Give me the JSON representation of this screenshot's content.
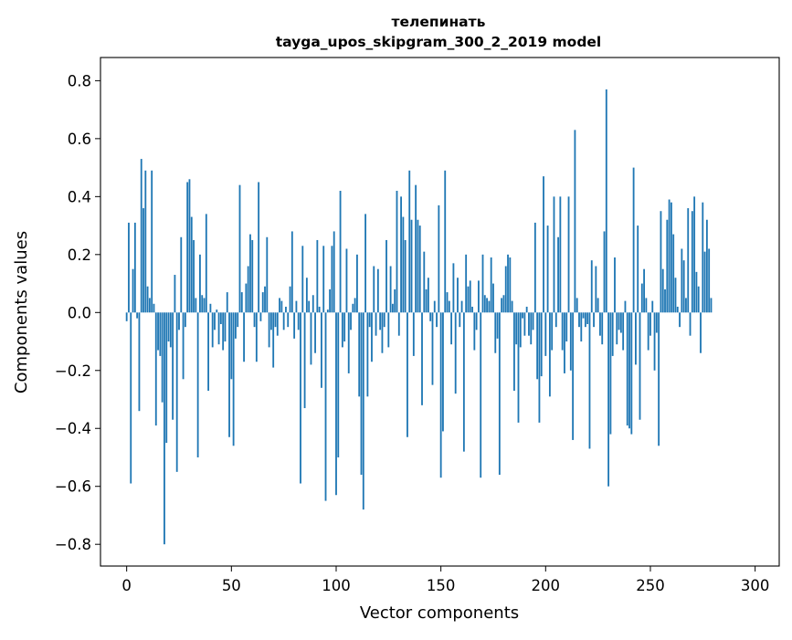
{
  "chart_data": {
    "type": "bar",
    "title": "телепинать",
    "subtitle": "tayga_upos_skipgram_300_2_2019 model",
    "xlabel": "Vector components",
    "ylabel": "Components values",
    "xlim": [
      -12.5,
      311.5
    ],
    "ylim": [
      -0.875,
      0.88
    ],
    "xticks": [
      0,
      50,
      100,
      150,
      200,
      250,
      300
    ],
    "xtick_labels": [
      "0",
      "50",
      "100",
      "150",
      "200",
      "250",
      "300"
    ],
    "yticks": [
      -0.8,
      -0.6,
      -0.4,
      -0.2,
      0.0,
      0.2,
      0.4,
      0.6,
      0.8
    ],
    "ytick_labels": [
      "−0.8",
      "−0.6",
      "−0.4",
      "−0.2",
      "0.0",
      "0.2",
      "0.4",
      "0.6",
      "0.8"
    ],
    "bar_color": "#1f77b4",
    "grid": false,
    "legend": "none",
    "values": [
      -0.03,
      0.31,
      -0.59,
      0.15,
      0.31,
      -0.02,
      -0.34,
      0.53,
      0.36,
      0.49,
      0.09,
      0.05,
      0.49,
      0.03,
      -0.39,
      -0.13,
      -0.15,
      -0.31,
      -0.8,
      -0.45,
      -0.1,
      -0.12,
      -0.37,
      0.13,
      -0.55,
      -0.06,
      0.26,
      -0.23,
      -0.05,
      0.45,
      0.46,
      0.33,
      0.25,
      0.05,
      -0.5,
      0.2,
      0.06,
      0.05,
      0.34,
      -0.27,
      0.03,
      -0.12,
      -0.06,
      0.01,
      -0.11,
      -0.04,
      -0.13,
      -0.1,
      0.07,
      -0.43,
      -0.23,
      -0.46,
      -0.09,
      -0.05,
      0.44,
      0.07,
      -0.17,
      0.1,
      0.16,
      0.27,
      0.25,
      -0.05,
      -0.17,
      0.45,
      -0.03,
      0.07,
      0.09,
      0.26,
      -0.12,
      -0.06,
      -0.19,
      -0.05,
      -0.08,
      0.05,
      0.04,
      -0.06,
      0.02,
      -0.05,
      0.09,
      0.28,
      -0.09,
      0.04,
      -0.06,
      -0.59,
      0.23,
      -0.33,
      0.12,
      0.04,
      -0.18,
      0.06,
      -0.14,
      0.25,
      0.02,
      -0.26,
      0.23,
      -0.65,
      0.01,
      0.08,
      0.23,
      0.28,
      -0.63,
      -0.5,
      0.42,
      -0.12,
      -0.1,
      0.22,
      -0.21,
      -0.06,
      0.03,
      0.05,
      0.2,
      -0.29,
      -0.56,
      -0.68,
      0.34,
      -0.29,
      -0.05,
      -0.17,
      0.16,
      -0.08,
      0.15,
      -0.06,
      -0.14,
      -0.05,
      0.25,
      -0.12,
      0.16,
      0.03,
      0.08,
      0.42,
      -0.08,
      0.4,
      0.33,
      0.25,
      -0.43,
      0.49,
      0.32,
      -0.15,
      0.44,
      0.32,
      0.3,
      -0.32,
      0.21,
      0.08,
      0.12,
      -0.03,
      -0.25,
      0.04,
      -0.05,
      0.37,
      -0.57,
      -0.41,
      0.49,
      0.07,
      0.04,
      -0.11,
      0.17,
      -0.28,
      0.12,
      -0.05,
      0.04,
      -0.48,
      0.2,
      0.09,
      0.11,
      0.02,
      -0.13,
      -0.06,
      0.11,
      -0.57,
      0.2,
      0.06,
      0.05,
      0.04,
      0.19,
      0.1,
      -0.14,
      -0.09,
      -0.56,
      0.05,
      0.06,
      0.16,
      0.2,
      0.19,
      0.04,
      -0.27,
      -0.11,
      -0.38,
      -0.12,
      -0.02,
      -0.08,
      0.02,
      -0.08,
      -0.11,
      -0.06,
      0.31,
      -0.23,
      -0.38,
      -0.22,
      0.47,
      -0.15,
      0.3,
      -0.29,
      -0.13,
      0.4,
      -0.05,
      0.26,
      0.4,
      -0.13,
      -0.21,
      -0.1,
      0.4,
      -0.2,
      -0.44,
      0.63,
      0.05,
      -0.05,
      -0.1,
      -0.02,
      -0.05,
      -0.04,
      -0.47,
      0.18,
      -0.05,
      0.16,
      0.05,
      -0.08,
      -0.11,
      0.28,
      0.77,
      -0.6,
      -0.42,
      -0.15,
      0.19,
      -0.11,
      -0.06,
      -0.07,
      -0.13,
      0.04,
      -0.39,
      -0.4,
      -0.42,
      0.5,
      -0.18,
      0.3,
      -0.37,
      0.1,
      0.15,
      0.05,
      -0.13,
      -0.08,
      0.04,
      -0.2,
      -0.07,
      -0.46,
      0.35,
      0.15,
      0.08,
      0.32,
      0.39,
      0.38,
      0.27,
      0.12,
      0.02,
      -0.05,
      0.22,
      0.18,
      0.05,
      0.36,
      -0.08,
      0.35,
      0.4,
      0.14,
      0.09,
      -0.14,
      0.38,
      0.21,
      0.32,
      0.22,
      0.05
    ]
  }
}
